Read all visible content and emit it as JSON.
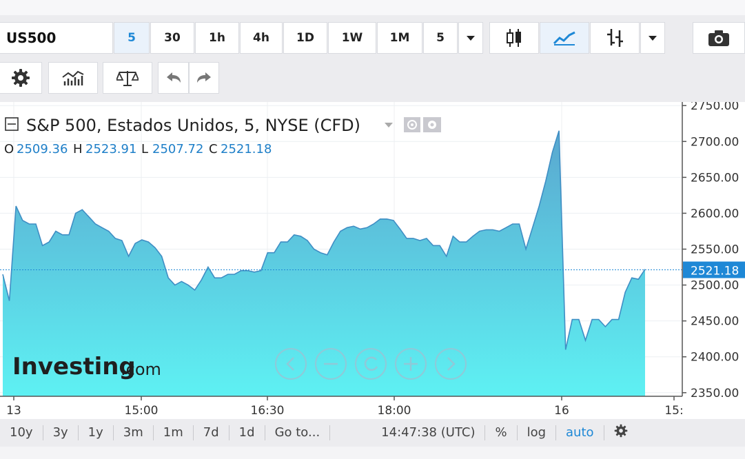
{
  "toolbar": {
    "symbol": "US500",
    "intervals": [
      "5",
      "30",
      "1h",
      "4h",
      "1D",
      "1W",
      "1M",
      "5"
    ],
    "active_interval_index": 0,
    "icons": [
      "dropdown-icon",
      "candlestick-icon",
      "area-chart-icon",
      "bar-chart-icon",
      "dropdown-icon",
      "camera-icon"
    ]
  },
  "toolbar2": {
    "icons": [
      "gear-icon",
      "indicators-icon",
      "compare-icon",
      "undo-icon",
      "redo-icon"
    ]
  },
  "legend": {
    "title": "S&P 500, Estados Unidos, 5, NYSE (CFD)",
    "o_label": "O",
    "o_value": "2509.36",
    "h_label": "H",
    "h_value": "2523.91",
    "l_label": "L",
    "l_value": "2507.72",
    "c_label": "C",
    "c_value": "2521.18"
  },
  "watermark": {
    "brand": "Investing",
    "suffix": ".com"
  },
  "nav_buttons": [
    "chevron-left-icon",
    "zoom-out-icon",
    "reset-icon",
    "zoom-in-icon",
    "chevron-right-icon"
  ],
  "chart_data": {
    "type": "area",
    "y_ticks": [
      "2750.00",
      "2700.00",
      "2650.00",
      "2600.00",
      "2550.00",
      "2500.00",
      "2450.00",
      "2400.00",
      "2350.00"
    ],
    "x_ticks": [
      "13",
      "15:00",
      "16:30",
      "18:00",
      "16",
      "15:"
    ],
    "ylim": [
      2345,
      2755
    ],
    "current_price": "2521.18",
    "colors": {
      "line": "#3f8ec4",
      "fill_top": "#5aa7cf",
      "fill_bottom": "#5ef1f3",
      "price_tag": "#1e88d6"
    },
    "series": [
      {
        "values": [
          2515,
          2478,
          2610,
          2590,
          2585,
          2585,
          2555,
          2560,
          2575,
          2570,
          2570,
          2600,
          2605,
          2595,
          2585,
          2580,
          2575,
          2565,
          2562,
          2540,
          2558,
          2563,
          2560,
          2552,
          2540,
          2510,
          2500,
          2505,
          2500,
          2493,
          2507,
          2525,
          2510,
          2510,
          2515,
          2515,
          2520,
          2520,
          2518,
          2520,
          2545,
          2545,
          2560,
          2560,
          2570,
          2568,
          2562,
          2550,
          2545,
          2542,
          2560,
          2575,
          2580,
          2582,
          2578,
          2580,
          2585,
          2592,
          2592,
          2590,
          2578,
          2565,
          2565,
          2562,
          2565,
          2555,
          2555,
          2540,
          2568,
          2560,
          2560,
          2568,
          2575,
          2577,
          2577,
          2575,
          2580,
          2585,
          2585,
          2550,
          2580,
          2610,
          2645,
          2685,
          2715,
          2410,
          2452,
          2452,
          2423,
          2452,
          2452,
          2442,
          2452,
          2452,
          2490,
          2510,
          2508,
          2522
        ]
      }
    ]
  },
  "bottombar": {
    "ranges": [
      "10y",
      "3y",
      "1y",
      "3m",
      "1m",
      "7d",
      "1d",
      "Go to..."
    ],
    "time": "14:47:38 (UTC)",
    "options": [
      "%",
      "log",
      "auto"
    ],
    "settings_icon": "gear-icon"
  }
}
